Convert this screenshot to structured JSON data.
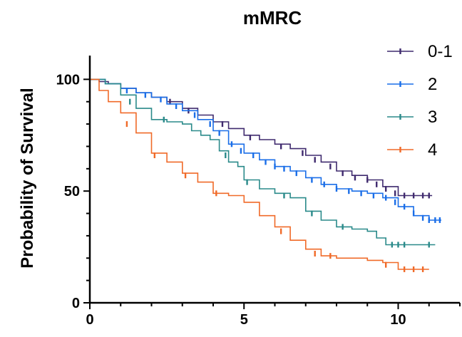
{
  "chart_data": {
    "type": "line",
    "title": "mMRC",
    "xlabel": "",
    "ylabel": "Probability of Survival",
    "xlim": [
      0,
      12
    ],
    "ylim": [
      0,
      110
    ],
    "x_ticks": [
      0,
      5,
      10
    ],
    "y_ticks": [
      0,
      50,
      100
    ],
    "legend_position": "top-right",
    "grid": false,
    "series": [
      {
        "name": "0-1",
        "color": "#3f2a6e",
        "step": true,
        "points": [
          [
            0,
            100
          ],
          [
            0.3,
            99
          ],
          [
            0.6,
            98
          ],
          [
            1,
            96
          ],
          [
            1.5,
            94
          ],
          [
            2,
            92
          ],
          [
            2.5,
            90
          ],
          [
            3,
            87
          ],
          [
            3.5,
            84
          ],
          [
            4,
            81
          ],
          [
            4.5,
            78
          ],
          [
            5,
            75
          ],
          [
            5.5,
            73
          ],
          [
            6,
            71
          ],
          [
            6.5,
            69
          ],
          [
            7,
            66
          ],
          [
            7.5,
            63
          ],
          [
            8,
            59
          ],
          [
            8.5,
            57
          ],
          [
            9,
            55
          ],
          [
            9.5,
            52
          ],
          [
            10,
            48
          ],
          [
            11.1,
            48
          ]
        ],
        "censors": [
          [
            2.6,
            90
          ],
          [
            3.2,
            86
          ],
          [
            4.3,
            80
          ],
          [
            5.2,
            74
          ],
          [
            6.2,
            70
          ],
          [
            6.9,
            67
          ],
          [
            7.3,
            64
          ],
          [
            7.8,
            61
          ],
          [
            8.2,
            58
          ],
          [
            8.6,
            56
          ],
          [
            9,
            55
          ],
          [
            9.3,
            53
          ],
          [
            9.6,
            51
          ],
          [
            9.9,
            49
          ],
          [
            10.2,
            48
          ],
          [
            10.5,
            48
          ],
          [
            10.8,
            48
          ],
          [
            11,
            48
          ]
        ]
      },
      {
        "name": "2",
        "color": "#1a6ee8",
        "step": true,
        "points": [
          [
            0,
            100
          ],
          [
            0.5,
            98
          ],
          [
            1,
            96
          ],
          [
            1.5,
            94
          ],
          [
            2,
            92
          ],
          [
            2.5,
            89
          ],
          [
            3,
            86
          ],
          [
            3.5,
            82
          ],
          [
            4,
            77
          ],
          [
            4.5,
            71
          ],
          [
            5,
            67
          ],
          [
            5.5,
            64
          ],
          [
            6,
            61
          ],
          [
            6.5,
            59
          ],
          [
            7,
            56
          ],
          [
            7.5,
            53
          ],
          [
            8,
            51
          ],
          [
            8.5,
            50
          ],
          [
            9,
            49
          ],
          [
            9.5,
            47
          ],
          [
            10,
            43
          ],
          [
            10.5,
            39
          ],
          [
            11,
            37
          ],
          [
            11.4,
            37
          ]
        ],
        "censors": [
          [
            1.2,
            95
          ],
          [
            1.8,
            93
          ],
          [
            2.3,
            91
          ],
          [
            2.8,
            88
          ],
          [
            3.4,
            84
          ],
          [
            3.9,
            80
          ],
          [
            4.2,
            76
          ],
          [
            4.6,
            71
          ],
          [
            4.9,
            68
          ],
          [
            5.3,
            66
          ],
          [
            5.7,
            63
          ],
          [
            6,
            61
          ],
          [
            6.3,
            60
          ],
          [
            6.7,
            58
          ],
          [
            7.2,
            55
          ],
          [
            7.6,
            53
          ],
          [
            8,
            51
          ],
          [
            8.4,
            50
          ],
          [
            8.8,
            49
          ],
          [
            9.2,
            48
          ],
          [
            9.6,
            47
          ],
          [
            9.9,
            45
          ],
          [
            10.2,
            43
          ],
          [
            10.5,
            40
          ],
          [
            10.8,
            38
          ],
          [
            11,
            37
          ],
          [
            11.2,
            37
          ],
          [
            11.35,
            37
          ]
        ]
      },
      {
        "name": "3",
        "color": "#2a8a8a",
        "step": true,
        "points": [
          [
            0,
            100
          ],
          [
            0.5,
            98
          ],
          [
            1,
            93
          ],
          [
            1.5,
            87
          ],
          [
            2,
            82
          ],
          [
            2.5,
            81
          ],
          [
            3,
            80
          ],
          [
            3.3,
            77
          ],
          [
            3.6,
            75
          ],
          [
            3.9,
            73
          ],
          [
            4.2,
            68
          ],
          [
            4.5,
            63
          ],
          [
            4.8,
            61
          ],
          [
            5,
            55
          ],
          [
            5.5,
            51
          ],
          [
            6,
            49
          ],
          [
            6.5,
            47
          ],
          [
            7,
            41
          ],
          [
            7.5,
            37
          ],
          [
            8,
            34
          ],
          [
            8.5,
            33
          ],
          [
            9,
            32
          ],
          [
            9.3,
            29
          ],
          [
            9.6,
            26
          ],
          [
            11.2,
            26
          ]
        ],
        "censors": [
          [
            1.3,
            90
          ],
          [
            2.4,
            82
          ],
          [
            4.4,
            66
          ],
          [
            5.1,
            54
          ],
          [
            6.3,
            48
          ],
          [
            7.2,
            40
          ],
          [
            8.2,
            34
          ],
          [
            9.8,
            26
          ],
          [
            10,
            26
          ],
          [
            10.2,
            26
          ],
          [
            11,
            26
          ]
        ]
      },
      {
        "name": "4",
        "color": "#f06a28",
        "step": true,
        "points": [
          [
            0,
            100
          ],
          [
            0.3,
            95
          ],
          [
            0.6,
            90
          ],
          [
            1,
            85
          ],
          [
            1.5,
            76
          ],
          [
            2,
            67
          ],
          [
            2.5,
            63
          ],
          [
            3,
            58
          ],
          [
            3.5,
            54
          ],
          [
            4,
            49
          ],
          [
            4.5,
            48
          ],
          [
            5,
            45
          ],
          [
            5.5,
            39
          ],
          [
            6,
            34
          ],
          [
            6.5,
            28
          ],
          [
            7,
            24
          ],
          [
            7.5,
            21
          ],
          [
            8,
            20
          ],
          [
            9,
            19
          ],
          [
            9.5,
            18
          ],
          [
            10,
            15
          ],
          [
            11,
            15
          ]
        ],
        "censors": [
          [
            1.2,
            80
          ],
          [
            2.1,
            66
          ],
          [
            3.1,
            57
          ],
          [
            4.1,
            49
          ],
          [
            6.2,
            32
          ],
          [
            7.3,
            22
          ],
          [
            7.8,
            21
          ],
          [
            9.6,
            17
          ],
          [
            10.2,
            15
          ],
          [
            10.5,
            15
          ],
          [
            10.8,
            15
          ]
        ]
      }
    ]
  }
}
